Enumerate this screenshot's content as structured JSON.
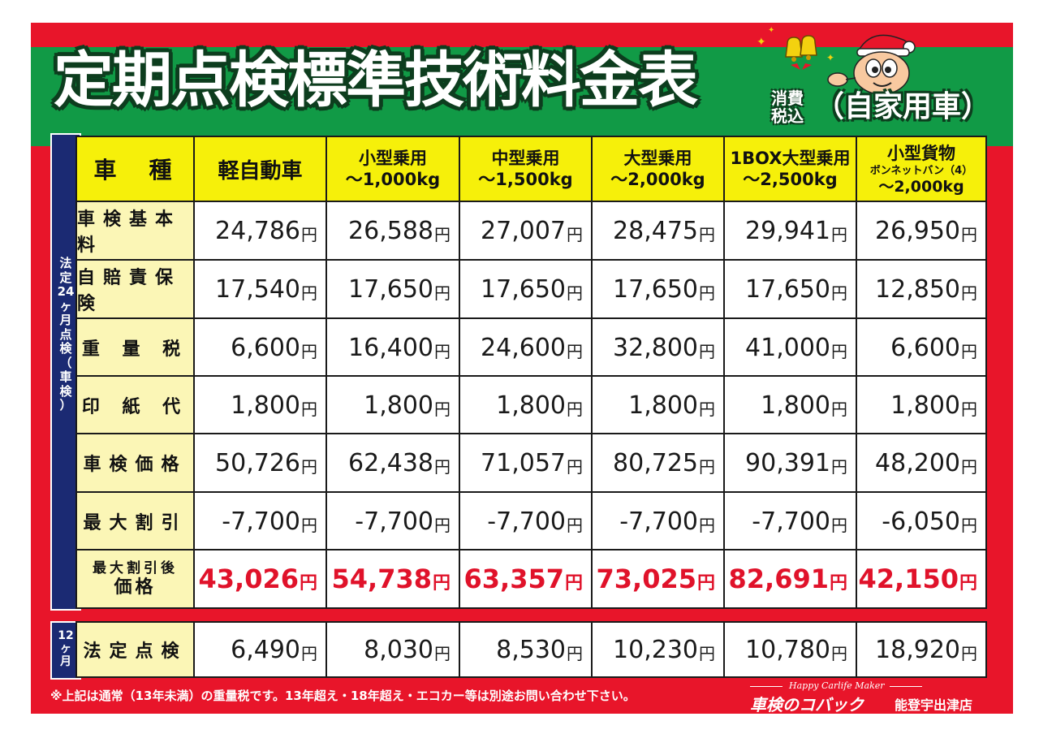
{
  "title": "定期点検標準技術料金表",
  "tax_note": "消費税込",
  "usage": "（自家用車）",
  "side_label_24": "法定24ヶ月点検（車検）",
  "side_label_12": "12ヶ月",
  "header": {
    "row_label": "車　種",
    "columns": [
      {
        "line1": "軽自動車",
        "line2": "",
        "line3": ""
      },
      {
        "line1": "小型乗用",
        "line2": "〜1,000kg",
        "line3": ""
      },
      {
        "line1": "中型乗用",
        "line2": "〜1,500kg",
        "line3": ""
      },
      {
        "line1": "大型乗用",
        "line2": "〜2,000kg",
        "line3": ""
      },
      {
        "line1": "1BOX大型乗用",
        "line2": "〜2,500kg",
        "line3": ""
      },
      {
        "line1": "小型貨物",
        "line2": "ボンネットバン（4）",
        "line3": "〜2,000kg"
      }
    ]
  },
  "yen": "円",
  "rows": [
    {
      "label": "車検基本料",
      "values": [
        "24,786",
        "26,588",
        "27,007",
        "28,475",
        "29,941",
        "26,950"
      ]
    },
    {
      "label": "自賠責保険",
      "values": [
        "17,540",
        "17,650",
        "17,650",
        "17,650",
        "17,650",
        "12,850"
      ]
    },
    {
      "label": "重 量 税",
      "values": [
        "6,600",
        "16,400",
        "24,600",
        "32,800",
        "41,000",
        "6,600"
      ]
    },
    {
      "label": "印 紙 代",
      "values": [
        "1,800",
        "1,800",
        "1,800",
        "1,800",
        "1,800",
        "1,800"
      ]
    },
    {
      "label": "車検価格",
      "values": [
        "50,726",
        "62,438",
        "71,057",
        "80,725",
        "90,391",
        "48,200"
      ]
    },
    {
      "label": "最大割引",
      "values": [
        "-7,700",
        "-7,700",
        "-7,700",
        "-7,700",
        "-7,700",
        "-6,050"
      ]
    },
    {
      "label_line1": "最大割引後",
      "label_line2": "価格",
      "values": [
        "43,026",
        "54,738",
        "63,357",
        "73,025",
        "82,691",
        "42,150"
      ]
    }
  ],
  "inspection_12": {
    "label": "法定点検",
    "values": [
      "6,490",
      "8,030",
      "8,530",
      "10,230",
      "10,780",
      "18,920"
    ]
  },
  "footnote": "※上記は通常（13年未満）の重量税です。13年超え・18年超え・エコカー等は別途お問い合わせ下さい。",
  "brand": {
    "tagline": "Happy Carlife Maker",
    "name": "車検のコバック",
    "store": "能登宇出津店"
  },
  "colors": {
    "poster_red": "#e8152a",
    "band_green": "#119a46",
    "header_yellow": "#f6f00a",
    "label_cream": "#fbf6b6",
    "side_navy": "#1b2a73",
    "price_red": "#e0122a"
  }
}
